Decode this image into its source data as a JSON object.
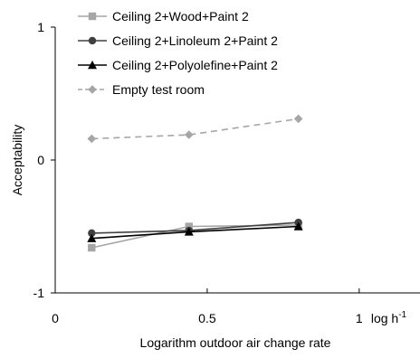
{
  "chart_data": {
    "type": "line",
    "title": "",
    "xlabel": "Logarithm outdoor air change rate",
    "ylabel": "Acceptability",
    "xlim": [
      0,
      1.2
    ],
    "ylim": [
      -1,
      1
    ],
    "xticks": [
      {
        "value": 0,
        "label": "0"
      },
      {
        "value": 0.5,
        "label": "0.5"
      },
      {
        "value": 1,
        "label": "1"
      }
    ],
    "x_unit_label": "log h",
    "x_unit_superscript": "-1",
    "yticks": [
      {
        "value": -1,
        "label": "-1"
      },
      {
        "value": 0,
        "label": "0"
      },
      {
        "value": 1,
        "label": "1"
      }
    ],
    "grid": false,
    "legend_position": "top-left",
    "series": [
      {
        "name": "Ceiling 2+Wood+Paint 2",
        "color": "#a6a6a6",
        "marker": "square",
        "dash": "solid",
        "x": [
          0.12,
          0.44,
          0.8
        ],
        "y": [
          -0.66,
          -0.5,
          -0.49
        ]
      },
      {
        "name": "Ceiling 2+Linoleum 2+Paint 2",
        "color": "#404040",
        "marker": "circle",
        "dash": "solid",
        "x": [
          0.12,
          0.44,
          0.8
        ],
        "y": [
          -0.55,
          -0.53,
          -0.47
        ]
      },
      {
        "name": "Ceiling 2+Polyolefine+Paint 2",
        "color": "#000000",
        "marker": "triangle",
        "dash": "solid",
        "x": [
          0.12,
          0.44,
          0.8
        ],
        "y": [
          -0.59,
          -0.54,
          -0.5
        ]
      },
      {
        "name": "Empty test room",
        "color": "#a6a6a6",
        "marker": "diamond",
        "dash": "dashed",
        "x": [
          0.12,
          0.44,
          0.8
        ],
        "y": [
          0.16,
          0.19,
          0.31
        ]
      }
    ]
  }
}
